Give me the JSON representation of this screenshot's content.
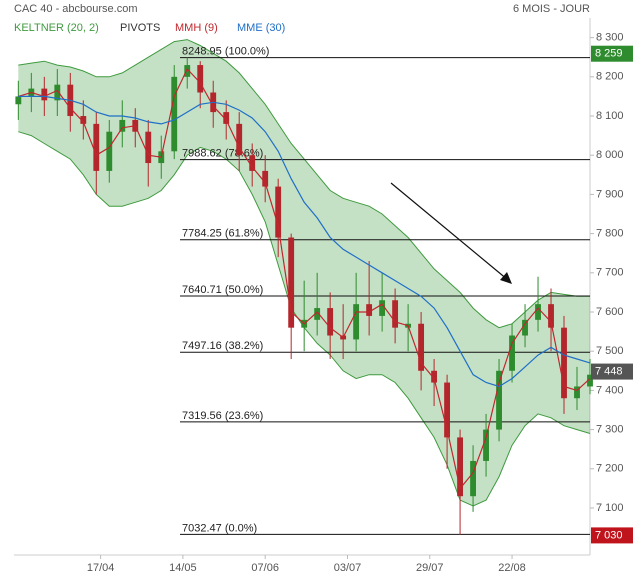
{
  "chart_data": {
    "type": "candlestick",
    "title": "CAC 40 - abcbourse.com",
    "subtitle": "6 MOIS - JOUR",
    "x": [
      1,
      4,
      7,
      10,
      13,
      16,
      19,
      22,
      25,
      28,
      31,
      34,
      37,
      40,
      43,
      46,
      49,
      52,
      55,
      58,
      61,
      64,
      67,
      70,
      73,
      76,
      79,
      82,
      85,
      88,
      91,
      94,
      97,
      100,
      103,
      106,
      109,
      112,
      115,
      118,
      121,
      124,
      127,
      130,
      133
    ],
    "open": [
      8130,
      8150,
      8170,
      8140,
      8180,
      8100,
      8080,
      7960,
      8060,
      8090,
      8060,
      7980,
      8010,
      8200,
      8230,
      8160,
      8110,
      8080,
      8000,
      7960,
      7920,
      7790,
      7560,
      7580,
      7610,
      7540,
      7530,
      7620,
      7590,
      7630,
      7560,
      7570,
      7450,
      7420,
      7280,
      7130,
      7220,
      7300,
      7450,
      7540,
      7580,
      7620,
      7560,
      7380,
      7410
    ],
    "high": [
      8190,
      8210,
      8200,
      8220,
      8210,
      8140,
      8110,
      8090,
      8140,
      8120,
      8090,
      8050,
      8230,
      8249,
      8240,
      8190,
      8140,
      8110,
      8030,
      8000,
      7940,
      7800,
      7680,
      7700,
      7650,
      7620,
      7700,
      7730,
      7700,
      7660,
      7620,
      7600,
      7480,
      7440,
      7300,
      7260,
      7340,
      7480,
      7570,
      7620,
      7690,
      7660,
      7590,
      7460,
      7480
    ],
    "low": [
      8090,
      8110,
      8100,
      8100,
      8060,
      8040,
      7900,
      7930,
      8020,
      8020,
      7920,
      7940,
      7990,
      8170,
      8120,
      8070,
      8040,
      7960,
      7920,
      7880,
      7740,
      7480,
      7500,
      7540,
      7480,
      7480,
      7500,
      7540,
      7550,
      7520,
      7500,
      7400,
      7360,
      7200,
      7032,
      7090,
      7180,
      7270,
      7420,
      7510,
      7550,
      7500,
      7340,
      7350,
      7390
    ],
    "close": [
      8150,
      8170,
      8140,
      8180,
      8100,
      8080,
      7960,
      8060,
      8090,
      8060,
      7980,
      8010,
      8200,
      8230,
      8160,
      8110,
      8080,
      8000,
      7960,
      7920,
      7790,
      7560,
      7580,
      7610,
      7540,
      7530,
      7620,
      7590,
      7630,
      7560,
      7570,
      7450,
      7420,
      7280,
      7130,
      7220,
      7300,
      7450,
      7540,
      7580,
      7620,
      7560,
      7380,
      7410,
      7440
    ],
    "band": {
      "name": "KELTNER (20, 2)",
      "color": "#3f9a3f",
      "upper": [
        8230,
        8235,
        8240,
        8230,
        8225,
        8215,
        8200,
        8200,
        8210,
        8230,
        8250,
        8270,
        8290,
        8295,
        8280,
        8260,
        8240,
        8210,
        8170,
        8130,
        8080,
        8030,
        7990,
        7950,
        7910,
        7890,
        7880,
        7870,
        7850,
        7820,
        7790,
        7750,
        7710,
        7680,
        7650,
        7610,
        7580,
        7560,
        7570,
        7600,
        7630,
        7650,
        7645,
        7640,
        7640
      ],
      "lower": [
        8060,
        8050,
        8030,
        8010,
        7990,
        7950,
        7900,
        7870,
        7870,
        7880,
        7890,
        7910,
        7950,
        8000,
        8020,
        8010,
        7990,
        7960,
        7900,
        7830,
        7720,
        7610,
        7560,
        7520,
        7490,
        7450,
        7430,
        7440,
        7440,
        7420,
        7380,
        7330,
        7280,
        7210,
        7120,
        7105,
        7120,
        7180,
        7260,
        7310,
        7340,
        7330,
        7310,
        7300,
        7290
      ]
    },
    "series": [
      {
        "name": "MMH (9)",
        "color": "#c0272d",
        "values": [
          8150,
          8160,
          8150,
          8165,
          8120,
          8085,
          8000,
          8020,
          8070,
          8075,
          8000,
          7995,
          8150,
          8220,
          8185,
          8125,
          8090,
          8020,
          7970,
          7930,
          7820,
          7600,
          7570,
          7600,
          7560,
          7535,
          7600,
          7600,
          7620,
          7575,
          7565,
          7470,
          7430,
          7300,
          7150,
          7190,
          7280,
          7420,
          7520,
          7570,
          7610,
          7575,
          7410,
          7400,
          7430
        ]
      },
      {
        "name": "MME (30)",
        "color": "#1f6fc8",
        "values": [
          8150,
          8150,
          8150,
          8145,
          8140,
          8130,
          8110,
          8100,
          8100,
          8095,
          8085,
          8080,
          8090,
          8110,
          8130,
          8135,
          8130,
          8115,
          8095,
          8060,
          8010,
          7940,
          7880,
          7840,
          7790,
          7760,
          7740,
          7720,
          7700,
          7680,
          7660,
          7640,
          7610,
          7560,
          7500,
          7440,
          7420,
          7410,
          7430,
          7460,
          7490,
          7510,
          7490,
          7480,
          7470
        ]
      }
    ],
    "pivots": {
      "name": "PIVOTS",
      "levels": [
        {
          "value": 8248.95,
          "label": "8248.95 (100.0%)"
        },
        {
          "value": 7988.62,
          "label": "7988.62 (78.6%)"
        },
        {
          "value": 7784.25,
          "label": "7784.25 (61.8%)"
        },
        {
          "value": 7640.71,
          "label": "7640.71 (50.0%)"
        },
        {
          "value": 7497.16,
          "label": "7497.16 (38.2%)"
        },
        {
          "value": 7319.56,
          "label": "7319.56 (23.6%)"
        },
        {
          "value": 7032.47,
          "label": "7032.47 (0.0%)"
        }
      ]
    },
    "markers": [
      {
        "value": 8259,
        "label": "8 259",
        "color": "#2e8b2e"
      },
      {
        "value": 7448,
        "label": "7 448",
        "color": "#555555"
      },
      {
        "value": 7030,
        "label": "7 030",
        "color": "#c0141c"
      }
    ],
    "up_color": "#2e8b2e",
    "down_color": "#b3262b",
    "xlim": [
      0,
      133
    ],
    "ylim": [
      6980,
      8345
    ],
    "xticks": [
      {
        "value": 20,
        "label": "17/04"
      },
      {
        "value": 39,
        "label": "14/05"
      },
      {
        "value": 58,
        "label": "07/06"
      },
      {
        "value": 77,
        "label": "03/07"
      },
      {
        "value": 96,
        "label": "29/07"
      },
      {
        "value": 115,
        "label": "22/08"
      }
    ],
    "yticks": [
      {
        "value": 7100,
        "label": "7 100"
      },
      {
        "value": 7200,
        "label": "7 200"
      },
      {
        "value": 7300,
        "label": "7 300"
      },
      {
        "value": 7400,
        "label": "7 400"
      },
      {
        "value": 7500,
        "label": "7 500"
      },
      {
        "value": 7600,
        "label": "7 600"
      },
      {
        "value": 7700,
        "label": "7 700"
      },
      {
        "value": 7800,
        "label": "7 800"
      },
      {
        "value": 7900,
        "label": "7 900"
      },
      {
        "value": 8000,
        "label": "8 000"
      },
      {
        "value": 8100,
        "label": "8 100"
      },
      {
        "value": 8200,
        "label": "8 200"
      },
      {
        "value": 8300,
        "label": "8 300"
      }
    ]
  }
}
